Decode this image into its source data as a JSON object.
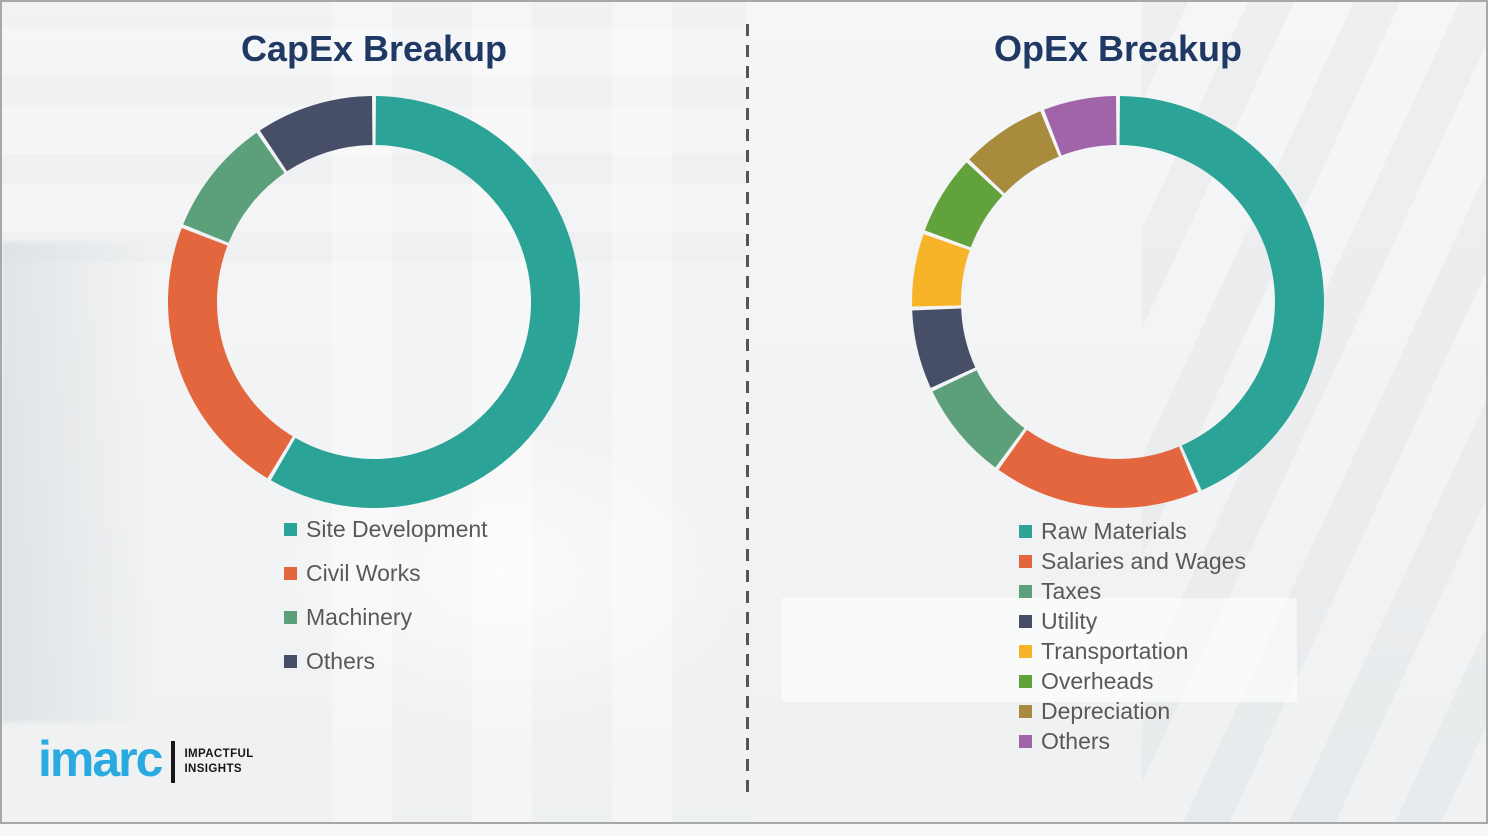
{
  "page": {
    "background_color": "#f2f3f4",
    "frame_border_color": "#a8a8a8",
    "divider_color": "#555555",
    "divider_style": "vertical dashed line"
  },
  "branding": {
    "logo_text": "imarc",
    "logo_color": "#29ABE2",
    "tagline_line1": "IMPACTFUL",
    "tagline_line2": "INSIGHTS",
    "tagline_color": "#161616"
  },
  "chart_data": [
    {
      "type": "pie",
      "subtype": "donut",
      "title": "CapEx Breakup",
      "title_color": "#1F3864",
      "categories": [
        "Site Development",
        "Civil Works",
        "Machinery",
        "Others"
      ],
      "values": [
        58.5,
        22.5,
        9.5,
        9.5
      ],
      "note": "No numeric labels shown; segment shares estimated from arc angles (percent of ring).",
      "colors": [
        "#2BA497",
        "#E4663E",
        "#5CA07B",
        "#474E68"
      ],
      "start_angle_deg": 0,
      "direction": "clockwise",
      "donut_hole_ratio": 0.76,
      "legend_position": "below-chart-left",
      "legend_text_color": "#595959",
      "grid": false
    },
    {
      "type": "pie",
      "subtype": "donut",
      "title": "OpEx Breakup",
      "title_color": "#1F3864",
      "categories": [
        "Raw Materials",
        "Salaries and Wages",
        "Taxes",
        "Utility",
        "Transportation",
        "Overheads",
        "Depreciation",
        "Others"
      ],
      "values": [
        43.5,
        16.5,
        8,
        6.5,
        6,
        6.5,
        7,
        6
      ],
      "note": "No numeric labels shown; segment shares estimated from arc angles (percent of ring).",
      "colors": [
        "#2BA497",
        "#E4663E",
        "#5CA07B",
        "#474E68",
        "#F8B429",
        "#61A23C",
        "#A98B3E",
        "#A164A8"
      ],
      "start_angle_deg": 0,
      "direction": "clockwise",
      "donut_hole_ratio": 0.76,
      "legend_position": "below-chart-left",
      "legend_text_color": "#595959",
      "grid": false
    }
  ]
}
